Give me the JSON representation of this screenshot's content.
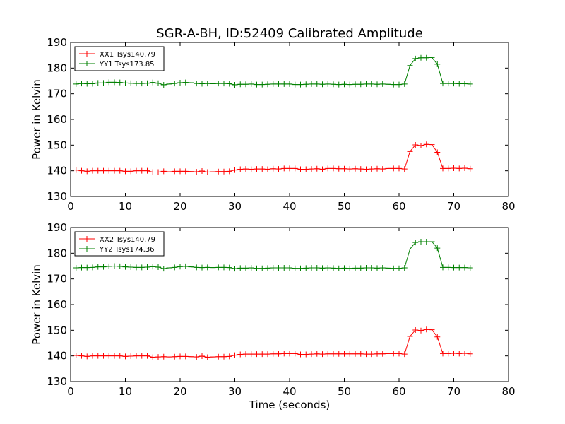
{
  "figure": {
    "title": "SGR-A-BH, ID:52409 Calibrated Amplitude",
    "xlabel": "Time (seconds)",
    "ylabel": "Power in Kelvin"
  },
  "colors": {
    "xx": "#ff0000",
    "yy": "#008000"
  },
  "chart_data": [
    {
      "type": "line",
      "title": "SGR-A-BH, ID:52409 Calibrated Amplitude",
      "xlabel": "",
      "ylabel": "Power in Kelvin",
      "xlim": [
        0,
        80
      ],
      "ylim": [
        130,
        190
      ],
      "xticks": [
        "0",
        "10",
        "20",
        "30",
        "40",
        "50",
        "60",
        "70",
        "80"
      ],
      "yticks": [
        "130",
        "140",
        "150",
        "160",
        "170",
        "180",
        "190"
      ],
      "grid": false,
      "legend_position": "top-left",
      "x": [
        1,
        2,
        3,
        4,
        5,
        6,
        7,
        8,
        9,
        10,
        11,
        12,
        13,
        14,
        15,
        16,
        17,
        18,
        19,
        20,
        21,
        22,
        23,
        24,
        25,
        26,
        27,
        28,
        29,
        30,
        31,
        32,
        33,
        34,
        35,
        36,
        37,
        38,
        39,
        40,
        41,
        42,
        43,
        44,
        45,
        46,
        47,
        48,
        49,
        50,
        51,
        52,
        53,
        54,
        55,
        56,
        57,
        58,
        59,
        60,
        61,
        62,
        63,
        64,
        65,
        66,
        67,
        68,
        69,
        70,
        71,
        72,
        73
      ],
      "series": [
        {
          "name": "XX1 Tsys140.79",
          "color": "#ff0000",
          "values": [
            140.3,
            140.0,
            139.8,
            140.0,
            140.0,
            140.0,
            140.0,
            140.0,
            140.0,
            139.8,
            139.8,
            140.0,
            140.0,
            140.0,
            139.5,
            139.5,
            139.8,
            139.6,
            139.8,
            139.8,
            139.8,
            139.7,
            139.6,
            139.9,
            139.5,
            139.6,
            139.7,
            139.7,
            139.8,
            140.3,
            140.6,
            140.7,
            140.6,
            140.7,
            140.7,
            140.6,
            140.8,
            140.7,
            140.9,
            140.9,
            140.9,
            140.6,
            140.6,
            140.7,
            140.8,
            140.6,
            140.9,
            140.9,
            140.8,
            140.8,
            140.7,
            140.8,
            140.7,
            140.6,
            140.7,
            140.8,
            140.7,
            140.9,
            140.9,
            140.9,
            140.7,
            147.5,
            150.1,
            149.8,
            150.3,
            150.2,
            147.2,
            140.9,
            140.9,
            141.0,
            140.9,
            141.0,
            140.8
          ]
        },
        {
          "name": "YY1 Tsys173.85",
          "color": "#008000",
          "values": [
            173.8,
            174.0,
            173.9,
            173.9,
            174.2,
            174.2,
            174.5,
            174.5,
            174.4,
            174.2,
            174.1,
            174.0,
            174.0,
            174.1,
            174.4,
            174.1,
            173.5,
            173.8,
            174.0,
            174.3,
            174.4,
            174.3,
            174.0,
            173.9,
            174.0,
            173.9,
            174.0,
            174.0,
            173.9,
            173.5,
            173.7,
            173.7,
            173.8,
            173.6,
            173.6,
            173.7,
            173.8,
            173.8,
            173.8,
            173.8,
            173.6,
            173.6,
            173.7,
            173.8,
            173.8,
            173.7,
            173.8,
            173.7,
            173.6,
            173.7,
            173.6,
            173.7,
            173.7,
            173.8,
            173.8,
            173.7,
            173.8,
            173.7,
            173.6,
            173.6,
            173.8,
            181.0,
            183.7,
            184.0,
            184.0,
            184.1,
            181.5,
            174.0,
            174.0,
            174.0,
            173.9,
            173.9,
            173.8
          ]
        }
      ]
    },
    {
      "type": "line",
      "title": "",
      "xlabel": "Time (seconds)",
      "ylabel": "Power in Kelvin",
      "xlim": [
        0,
        80
      ],
      "ylim": [
        130,
        190
      ],
      "xticks": [
        "0",
        "10",
        "20",
        "30",
        "40",
        "50",
        "60",
        "70",
        "80"
      ],
      "yticks": [
        "130",
        "140",
        "150",
        "160",
        "170",
        "180",
        "190"
      ],
      "grid": false,
      "legend_position": "top-left",
      "x": [
        1,
        2,
        3,
        4,
        5,
        6,
        7,
        8,
        9,
        10,
        11,
        12,
        13,
        14,
        15,
        16,
        17,
        18,
        19,
        20,
        21,
        22,
        23,
        24,
        25,
        26,
        27,
        28,
        29,
        30,
        31,
        32,
        33,
        34,
        35,
        36,
        37,
        38,
        39,
        40,
        41,
        42,
        43,
        44,
        45,
        46,
        47,
        48,
        49,
        50,
        51,
        52,
        53,
        54,
        55,
        56,
        57,
        58,
        59,
        60,
        61,
        62,
        63,
        64,
        65,
        66,
        67,
        68,
        69,
        70,
        71,
        72,
        73
      ],
      "series": [
        {
          "name": "XX2 Tsys140.79",
          "color": "#ff0000",
          "values": [
            140.2,
            140.0,
            139.8,
            140.0,
            140.0,
            140.0,
            140.0,
            140.0,
            140.0,
            139.8,
            139.9,
            140.0,
            140.0,
            140.0,
            139.5,
            139.6,
            139.7,
            139.6,
            139.7,
            139.8,
            139.8,
            139.7,
            139.6,
            139.9,
            139.5,
            139.6,
            139.7,
            139.7,
            139.8,
            140.3,
            140.6,
            140.7,
            140.7,
            140.7,
            140.7,
            140.7,
            140.8,
            140.8,
            140.9,
            140.9,
            140.9,
            140.6,
            140.6,
            140.7,
            140.8,
            140.7,
            140.8,
            140.8,
            140.8,
            140.8,
            140.8,
            140.8,
            140.8,
            140.7,
            140.7,
            140.8,
            140.8,
            140.9,
            140.9,
            140.9,
            140.7,
            147.6,
            150.1,
            149.9,
            150.3,
            150.2,
            147.4,
            140.9,
            140.9,
            141.0,
            140.9,
            141.0,
            140.8
          ]
        },
        {
          "name": "YY2 Tsys174.36",
          "color": "#008000",
          "values": [
            174.3,
            174.4,
            174.4,
            174.5,
            174.7,
            174.7,
            174.9,
            175.0,
            174.9,
            174.7,
            174.6,
            174.5,
            174.5,
            174.6,
            174.8,
            174.6,
            174.0,
            174.3,
            174.5,
            174.8,
            174.9,
            174.7,
            174.5,
            174.4,
            174.5,
            174.4,
            174.5,
            174.5,
            174.4,
            174.0,
            174.2,
            174.2,
            174.3,
            174.1,
            174.1,
            174.2,
            174.3,
            174.3,
            174.3,
            174.3,
            174.1,
            174.1,
            174.2,
            174.3,
            174.3,
            174.2,
            174.3,
            174.2,
            174.1,
            174.2,
            174.1,
            174.2,
            174.2,
            174.3,
            174.3,
            174.2,
            174.3,
            174.2,
            174.1,
            174.1,
            174.3,
            181.6,
            184.2,
            184.5,
            184.5,
            184.5,
            182.0,
            174.5,
            174.5,
            174.4,
            174.4,
            174.4,
            174.3
          ]
        }
      ]
    }
  ]
}
